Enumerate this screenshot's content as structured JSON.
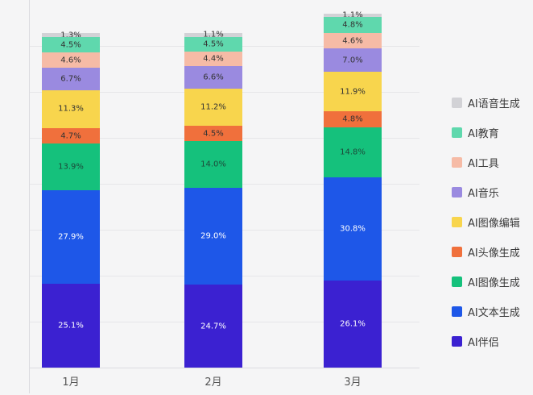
{
  "chart_data": {
    "type": "bar",
    "variant": "stacked-column",
    "title": "",
    "xlabel": "",
    "ylabel": "",
    "grid": true,
    "legend_position": "right",
    "value_suffix": "%",
    "categories": [
      "1月",
      "2月",
      "3月"
    ],
    "series": [
      {
        "name": "AI语音生成",
        "color": "#d2d2d6",
        "label_color": "#333333",
        "values": [
          1.3,
          1.1,
          1.1
        ]
      },
      {
        "name": "AI教育",
        "color": "#5fd8ad",
        "label_color": "#333333",
        "values": [
          4.5,
          4.5,
          4.8
        ]
      },
      {
        "name": "AI工具",
        "color": "#f6bba6",
        "label_color": "#333333",
        "values": [
          4.6,
          4.4,
          4.6
        ]
      },
      {
        "name": "AI音乐",
        "color": "#9a8ae0",
        "label_color": "#333333",
        "values": [
          6.7,
          6.6,
          7.0
        ]
      },
      {
        "name": "AI图像编辑",
        "color": "#f8d54d",
        "label_color": "#333333",
        "values": [
          11.3,
          11.2,
          11.9
        ]
      },
      {
        "name": "AI头像生成",
        "color": "#f0703c",
        "label_color": "#333333",
        "values": [
          4.7,
          4.5,
          4.8
        ]
      },
      {
        "name": "AI图像生成",
        "color": "#15c17c",
        "label_color": "#1d4a3a",
        "values": [
          13.9,
          14.0,
          14.8
        ]
      },
      {
        "name": "AI文本生成",
        "color": "#1e57e8",
        "label_color": "#ffffff",
        "values": [
          27.9,
          29.0,
          30.8
        ]
      },
      {
        "name": "AI伴侣",
        "color": "#3b21d1",
        "label_color": "#ffffff",
        "values": [
          25.1,
          24.7,
          26.1
        ]
      }
    ]
  }
}
